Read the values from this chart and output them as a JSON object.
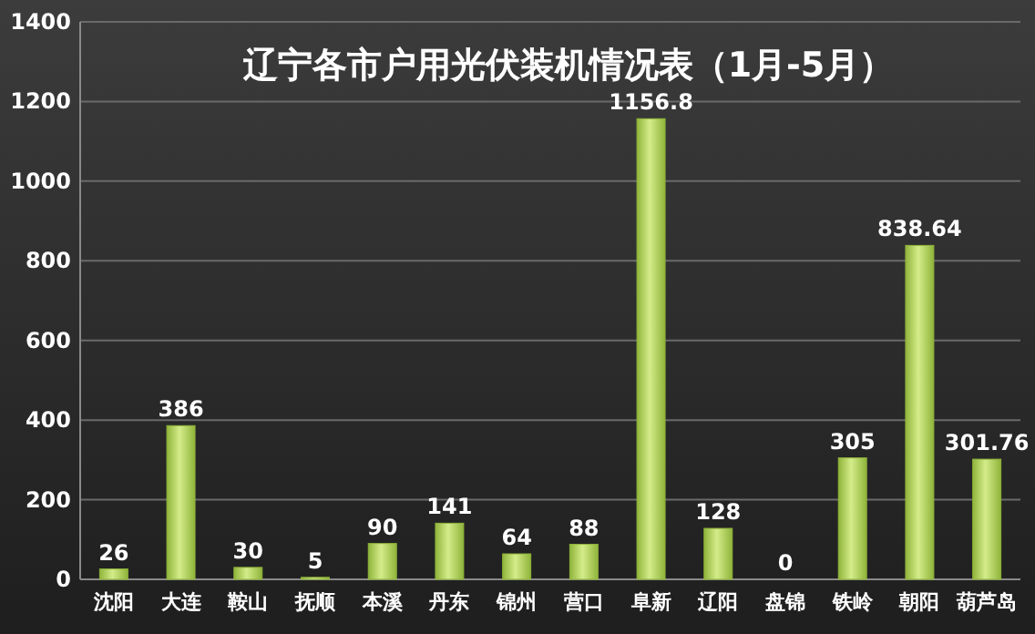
{
  "chart_data": {
    "type": "bar",
    "title": "辽宁各市户用光伏装机情况表（1月-5月）",
    "categories": [
      "沈阳",
      "大连",
      "鞍山",
      "抚顺",
      "本溪",
      "丹东",
      "锦州",
      "营口",
      "阜新",
      "辽阳",
      "盘锦",
      "铁岭",
      "朝阳",
      "葫芦岛"
    ],
    "values": [
      26,
      386,
      30,
      5,
      90,
      141,
      64,
      88,
      1156.8,
      128,
      0,
      305,
      838.64,
      301.76
    ],
    "color": "#8fb43a",
    "ylim": [
      0,
      1400
    ],
    "yticks": [
      0,
      200,
      400,
      600,
      800,
      1000,
      1200,
      1400
    ],
    "grid": "y",
    "data_labels": true
  }
}
